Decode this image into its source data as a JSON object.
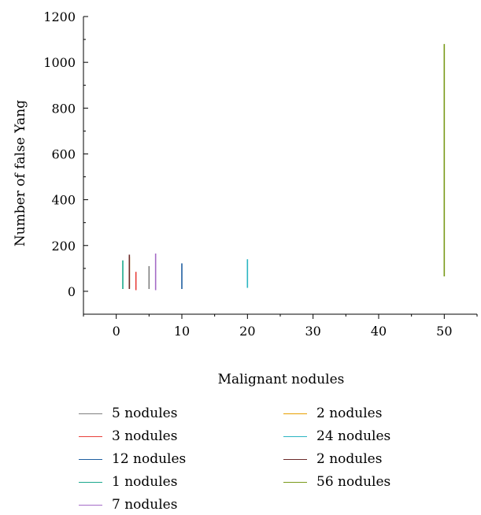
{
  "chart_data": {
    "type": "line",
    "xlabel": "Malignant nodules",
    "ylabel": "Number of false Yang",
    "xlim": [
      -5,
      55
    ],
    "ylim": [
      -100,
      1200
    ],
    "x_ticks": [
      0,
      10,
      20,
      30,
      40,
      50
    ],
    "y_ticks": [
      0,
      200,
      400,
      600,
      800,
      1000,
      1200
    ],
    "grid": false,
    "legend_position": "bottom",
    "series": [
      {
        "name": "5 nodules",
        "color": "#7f7f7f",
        "x": [
          5,
          5
        ],
        "y": [
          10,
          110
        ]
      },
      {
        "name": "3 nodules",
        "color": "#e8403a",
        "x": [
          3,
          3
        ],
        "y": [
          5,
          85
        ]
      },
      {
        "name": "12 nodules",
        "color": "#1f5fa0",
        "x": [
          10,
          10
        ],
        "y": [
          10,
          122
        ]
      },
      {
        "name": "1 nodules",
        "color": "#1aa88c",
        "x": [
          1,
          1
        ],
        "y": [
          10,
          135
        ]
      },
      {
        "name": "7 nodules",
        "color": "#a56bc7",
        "x": [
          6,
          6
        ],
        "y": [
          5,
          165
        ]
      },
      {
        "name": "2 nodules",
        "color": "#e8a000",
        "x": [
          2,
          2
        ],
        "y": [
          15,
          150
        ]
      },
      {
        "name": "24 nodules",
        "color": "#2ab5c2",
        "x": [
          20,
          20
        ],
        "y": [
          15,
          140
        ]
      },
      {
        "name": "2 nodules",
        "color": "#6b2a2a",
        "x": [
          2,
          2
        ],
        "y": [
          10,
          160
        ]
      },
      {
        "name": "56 nodules",
        "color": "#7a9a1a",
        "x": [
          50,
          50
        ],
        "y": [
          65,
          1080
        ]
      }
    ]
  }
}
